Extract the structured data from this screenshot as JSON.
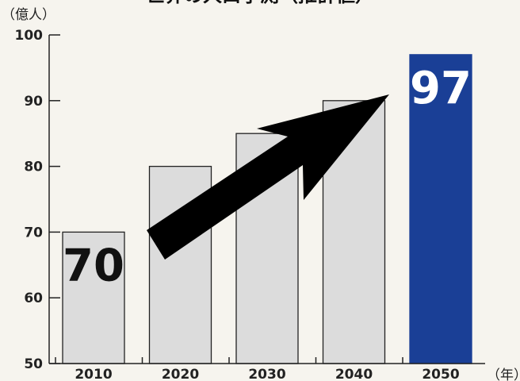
{
  "chart_data": {
    "type": "bar",
    "title": "世界の人口予測（推計値）",
    "y_unit_label": "（億人）",
    "x_unit_label": "（年）",
    "categories": [
      "2010",
      "2020",
      "2030",
      "2040",
      "2050"
    ],
    "values": [
      70,
      80,
      85,
      90,
      97
    ],
    "ylim": [
      50,
      100
    ],
    "yticks": [
      50,
      60,
      70,
      80,
      90,
      100
    ],
    "data_labels": [
      {
        "category": "2010",
        "text": "70"
      },
      {
        "category": "2050",
        "text": "97"
      }
    ],
    "bar_colors": [
      "#dcdcdc",
      "#dcdcdc",
      "#dcdcdc",
      "#dcdcdc",
      "#1a3f96"
    ],
    "data_label_colors": [
      "#111111",
      "#ffffff"
    ],
    "annotation": "upward-trend-arrow",
    "grid": false,
    "legend": "none"
  }
}
